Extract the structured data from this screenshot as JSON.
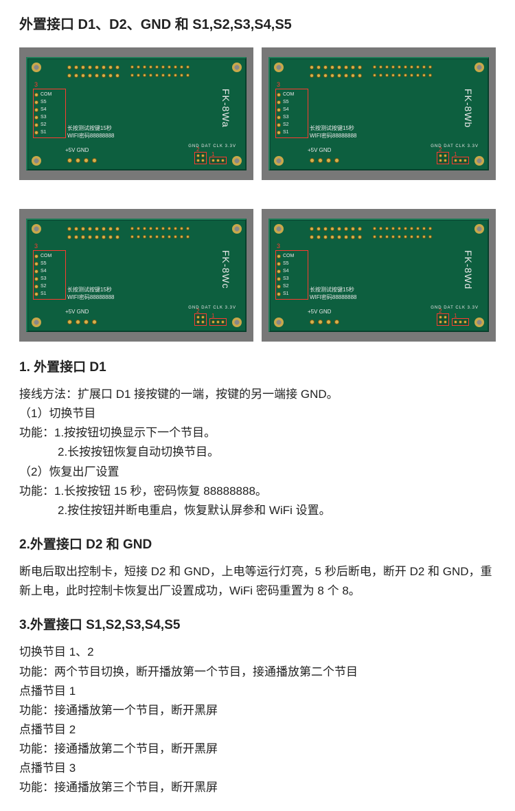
{
  "main_title": "外置接口 D1、D2、GND 和 S1,S2,S3,S4,S5",
  "boards": [
    {
      "model": "FK-8Wa"
    },
    {
      "model": "FK-8Wb"
    },
    {
      "model": "FK-8Wc"
    },
    {
      "model": "FK-8Wd"
    }
  ],
  "pcb_common": {
    "side_labels": [
      "COM",
      "S5",
      "S4",
      "S3",
      "S2",
      "S1"
    ],
    "side_box_num": "3",
    "text_line1": "长按测试按键15秒",
    "text_line2": "WIFI密码88888888",
    "power_label": "+5V  GND",
    "br_box1_num": "2",
    "br_box2_num": "1",
    "br_labels": "GND DAT CLK   3.3V"
  },
  "section1": {
    "title": "1. 外置接口 D1",
    "p1": "接线方法：扩展口 D1 接按键的一端，按键的另一端接 GND。",
    "p2": "（1）切换节目",
    "p3": "功能：1.按按钮切换显示下一个节目。",
    "p4": "2.长按按钮恢复自动切换节目。",
    "p5": "（2）恢复出厂设置",
    "p6": "功能：1.长按按钮 15 秒，密码恢复 88888888。",
    "p7": "2.按住按钮并断电重启，恢复默认屏参和 WiFi 设置。"
  },
  "section2": {
    "title": "2.外置接口 D2 和 GND",
    "p1": "断电后取出控制卡，短接 D2 和 GND，上电等运行灯亮，5 秒后断电，断开 D2 和 GND，重新上电，此时控制卡恢复出厂设置成功，WiFi 密码重置为 8 个 8。"
  },
  "section3": {
    "title": "3.外置接口 S1,S2,S3,S4,S5",
    "p1": "切换节目 1、2",
    "p2": "功能：两个节目切换，断开播放第一个节目，接通播放第二个节目",
    "p3": "点播节目 1",
    "p4": "功能：接通播放第一个节目，断开黑屏",
    "p5": "点播节目 2",
    "p6": "功能：接通播放第二个节目，断开黑屏",
    "p7": "点播节目 3",
    "p8": "功能：接通播放第三个节目，断开黑屏"
  },
  "colors": {
    "pcb": "#0d5f3f",
    "frame": "#787878",
    "pad": "#d4b24e",
    "highlight": "#ff3b30",
    "silk": "#e8e8e8"
  }
}
